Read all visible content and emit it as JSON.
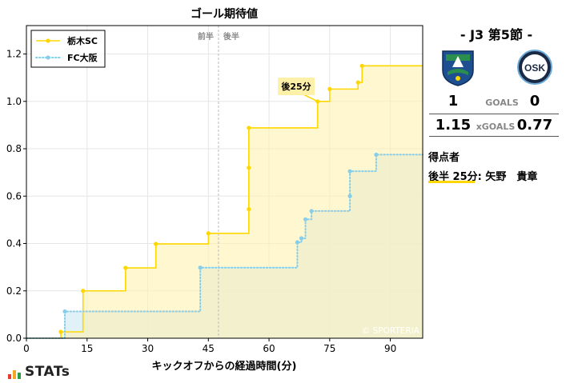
{
  "chart_data": {
    "type": "line",
    "step": true,
    "title": "ゴール期待値",
    "xlabel": "キックオフからの経過時間(分)",
    "ylabel": "",
    "xlim": [
      0,
      98
    ],
    "ylim": [
      0,
      1.32
    ],
    "x_ticks": [
      0,
      15,
      30,
      45,
      60,
      75,
      90
    ],
    "x_tick_labels": [
      "0",
      "15",
      "30",
      "45",
      "60",
      "75",
      "90"
    ],
    "y_ticks": [
      0.0,
      0.2,
      0.4,
      0.6,
      0.8,
      1.0,
      1.2
    ],
    "y_tick_labels": [
      "0.0",
      "0.2",
      "0.4",
      "0.6",
      "0.8",
      "1.0",
      "1.2"
    ],
    "halftime_x": 47.5,
    "halftime_labels": [
      "前半",
      "後半"
    ],
    "legend_position": "top-left",
    "watermark": "© SPORTERIA",
    "annotation": {
      "text": "後25分",
      "x": 72,
      "y": 1.0
    },
    "series": [
      {
        "name": "栃木SC",
        "color": "#ffd700",
        "fill": "#fff2b0",
        "style": "solid",
        "points": [
          [
            0,
            0
          ],
          [
            8.5,
            0
          ],
          [
            8.5,
            0.027
          ],
          [
            14,
            0.027
          ],
          [
            14,
            0.2
          ],
          [
            24.5,
            0.2
          ],
          [
            24.5,
            0.297
          ],
          [
            32,
            0.297
          ],
          [
            32,
            0.398
          ],
          [
            45,
            0.398
          ],
          [
            45,
            0.443
          ],
          [
            55,
            0.443
          ],
          [
            55,
            0.545
          ],
          [
            55,
            0.72
          ],
          [
            55,
            0.888
          ],
          [
            72,
            0.888
          ],
          [
            72,
            1.0
          ],
          [
            75,
            1.0
          ],
          [
            75,
            1.052
          ],
          [
            82,
            1.052
          ],
          [
            82,
            1.08
          ],
          [
            83,
            1.08
          ],
          [
            83,
            1.15
          ],
          [
            98,
            1.15
          ]
        ],
        "markers": [
          [
            8.5,
            0.027
          ],
          [
            14,
            0.2
          ],
          [
            24.5,
            0.297
          ],
          [
            32,
            0.398
          ],
          [
            45,
            0.443
          ],
          [
            55,
            0.545
          ],
          [
            55,
            0.72
          ],
          [
            55,
            0.888
          ],
          [
            72,
            1.0
          ],
          [
            75,
            1.052
          ],
          [
            82,
            1.08
          ],
          [
            83,
            1.15
          ]
        ]
      },
      {
        "name": "FC大阪",
        "color": "#87ceeb",
        "fill": "#d6ecf5",
        "style": "dotted",
        "points": [
          [
            0,
            0
          ],
          [
            9.5,
            0
          ],
          [
            9.5,
            0.113
          ],
          [
            43,
            0.113
          ],
          [
            43,
            0.298
          ],
          [
            67,
            0.298
          ],
          [
            67,
            0.405
          ],
          [
            68,
            0.405
          ],
          [
            68,
            0.422
          ],
          [
            69,
            0.422
          ],
          [
            69,
            0.502
          ],
          [
            70.5,
            0.502
          ],
          [
            70.5,
            0.537
          ],
          [
            80,
            0.537
          ],
          [
            80,
            0.6
          ],
          [
            80,
            0.705
          ],
          [
            86.5,
            0.705
          ],
          [
            86.5,
            0.775
          ],
          [
            98,
            0.775
          ]
        ],
        "markers": [
          [
            9.5,
            0.113
          ],
          [
            43,
            0.298
          ],
          [
            67,
            0.405
          ],
          [
            68,
            0.422
          ],
          [
            69,
            0.502
          ],
          [
            70.5,
            0.537
          ],
          [
            80,
            0.6
          ],
          [
            80,
            0.705
          ],
          [
            86.5,
            0.775
          ]
        ]
      }
    ]
  },
  "match": {
    "title": "- J3 第5節 -",
    "home_team_crest": "tochigi-sc-crest-icon",
    "away_team_crest": "fc-osaka-crest-icon",
    "goals_label": "GOALS",
    "home_goals": "1",
    "away_goals": "0",
    "xgoals_label": "xGOALS",
    "home_xg": "1.15",
    "away_xg": "0.77",
    "scorers_title": "得点者",
    "scorer_line": "後半 25分: 矢野　貴章",
    "scorer_color": "#ffd700"
  },
  "branding": {
    "logo_text": "STATs",
    "logo_bar_colors": [
      "#e8382f",
      "#f5a623",
      "#2e9e44"
    ]
  }
}
